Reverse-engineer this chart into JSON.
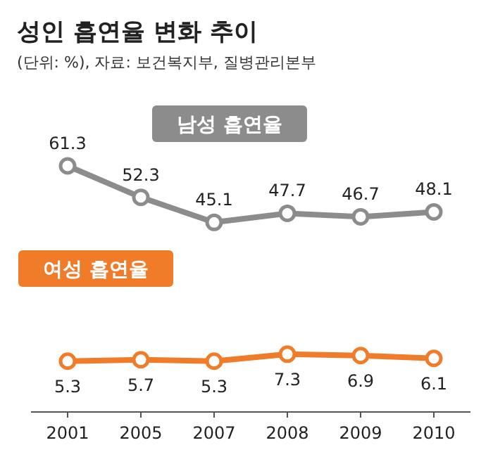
{
  "chart_data": {
    "type": "line",
    "title": "성인 흡연율 변화 추이",
    "subtitle": "(단위: %), 자료: 보건복지부, 질병관리본부",
    "categories": [
      "2001",
      "2005",
      "2007",
      "2008",
      "2009",
      "2010"
    ],
    "series": [
      {
        "name": "남성 흡연율",
        "color": "#8c8c8c",
        "values": [
          61.3,
          52.3,
          45.1,
          47.7,
          46.7,
          48.1
        ]
      },
      {
        "name": "여성 흡연율",
        "color": "#f07c2a",
        "values": [
          5.3,
          5.7,
          5.3,
          7.3,
          6.9,
          6.1
        ]
      }
    ],
    "data_labels": true,
    "marker": "circle",
    "line_style": "solid"
  }
}
